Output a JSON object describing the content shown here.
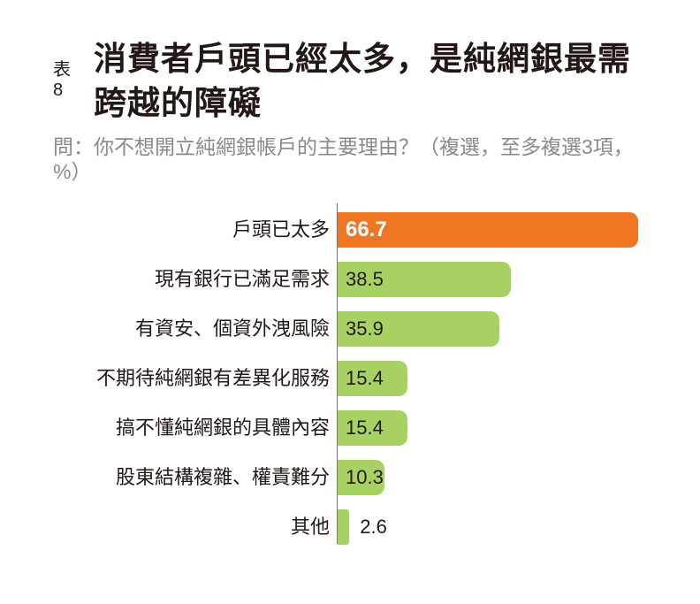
{
  "header": {
    "tag": "表8",
    "title": "消費者戶頭已經太多，是純網銀最需跨越的障礙",
    "subtitle": "問：你不想開立純網銀帳戶的主要理由？（複選，至多複選3項，%）"
  },
  "colors": {
    "highlight": "#ee7623",
    "default": "#a8d164",
    "axis": "#777777"
  },
  "chart_data": {
    "type": "bar",
    "orientation": "horizontal",
    "title": "消費者戶頭已經太多，是純網銀最需跨越的障礙",
    "subtitle": "問：你不想開立純網銀帳戶的主要理由？（複選，至多複選3項，%）",
    "xlabel": "",
    "ylabel": "",
    "unit": "%",
    "categories": [
      "戶頭已太多",
      "現有銀行已滿足需求",
      "有資安、個資外洩風險",
      "不期待純網銀有差異化服務",
      "搞不懂純網銀的具體內容",
      "股東結構複雜、權責難分",
      "其他"
    ],
    "values": [
      66.7,
      38.5,
      35.9,
      15.4,
      15.4,
      10.3,
      2.6
    ],
    "labels": [
      "66.7",
      "38.5",
      "35.9",
      "15.4",
      "15.4",
      "10.3",
      "2.6"
    ],
    "highlight_index": 0,
    "grid": false,
    "legend": null
  }
}
